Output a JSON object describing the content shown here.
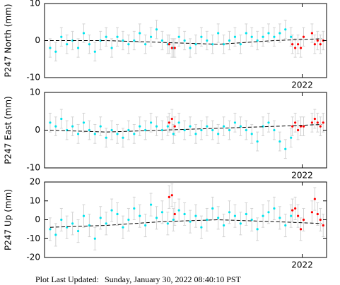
{
  "chart_data": [
    {
      "type": "scatter",
      "y_label": "P247 North (mm)",
      "xlim": [
        2021.08,
        2022.087
      ],
      "xticks": [
        {
          "value": 2022,
          "label": "2022"
        }
      ],
      "ylim": [
        -10,
        10
      ],
      "yticks": [
        -10,
        0,
        10
      ],
      "error_color": "#d3d3d3",
      "series": [
        {
          "color": "#00e5ee",
          "error": 2.5,
          "x": [
            2021.1,
            2021.12,
            2021.14,
            2021.16,
            2021.18,
            2021.2,
            2021.22,
            2021.24,
            2021.26,
            2021.28,
            2021.3,
            2021.32,
            2021.34,
            2021.36,
            2021.38,
            2021.4,
            2021.42,
            2021.44,
            2021.46,
            2021.48,
            2021.5,
            2021.52,
            2021.54,
            2021.56,
            2021.58,
            2021.6,
            2021.62,
            2021.64,
            2021.66,
            2021.68,
            2021.7,
            2021.72,
            2021.74,
            2021.76,
            2021.78,
            2021.8,
            2021.82,
            2021.84,
            2021.86,
            2021.88,
            2021.9,
            2021.92,
            2021.94,
            2021.96
          ],
          "values": [
            -2,
            -3,
            1,
            -1,
            0,
            -2,
            2,
            -1,
            -3,
            0,
            1,
            -2,
            1,
            0,
            -1,
            0,
            2,
            -1,
            1,
            3,
            0,
            -1,
            -2,
            1,
            0,
            -2,
            -1,
            1,
            0,
            -1,
            2,
            -1,
            0,
            1,
            -1,
            2,
            1,
            0,
            1,
            2,
            1,
            2,
            3,
            1
          ]
        },
        {
          "color": "#ff0000",
          "error": 2.5,
          "x": [
            2021.525,
            2021.535,
            2021.545,
            2021.965,
            2021.975,
            2021.985,
            2021.995,
            2022.005,
            2022.035,
            2022.045,
            2022.055,
            2022.065,
            2022.075
          ],
          "values": [
            -1,
            -2,
            -2,
            -1,
            -2,
            -1,
            -2,
            1,
            2,
            -1,
            0,
            -1,
            0
          ]
        },
        {
          "type": "line",
          "color": "#000000",
          "x": [
            2021.1,
            2021.3,
            2021.5,
            2021.7,
            2021.9,
            2022.07
          ],
          "values": [
            0,
            0,
            -0.5,
            -1,
            0,
            0.5
          ]
        }
      ]
    },
    {
      "type": "scatter",
      "y_label": "P247 East (mm)",
      "xlim": [
        2021.08,
        2022.087
      ],
      "xticks": [
        {
          "value": 2022,
          "label": "2022"
        }
      ],
      "ylim": [
        -10,
        10
      ],
      "yticks": [
        -10,
        0,
        10
      ],
      "error_color": "#d3d3d3",
      "series": [
        {
          "color": "#00e5ee",
          "error": 2.5,
          "x": [
            2021.1,
            2021.12,
            2021.14,
            2021.16,
            2021.18,
            2021.2,
            2021.22,
            2021.24,
            2021.26,
            2021.28,
            2021.3,
            2021.32,
            2021.34,
            2021.36,
            2021.38,
            2021.4,
            2021.42,
            2021.44,
            2021.46,
            2021.48,
            2021.5,
            2021.52,
            2021.54,
            2021.56,
            2021.58,
            2021.6,
            2021.62,
            2021.64,
            2021.66,
            2021.68,
            2021.7,
            2021.72,
            2021.74,
            2021.76,
            2021.78,
            2021.8,
            2021.82,
            2021.84,
            2021.86,
            2021.88,
            2021.9,
            2021.92,
            2021.94,
            2021.96
          ],
          "values": [
            2,
            1,
            3,
            0,
            1,
            -1,
            2,
            0,
            -1,
            1,
            -2,
            0,
            -1,
            -2,
            0,
            -1,
            1,
            0,
            2,
            1,
            0,
            1,
            -1,
            2,
            0,
            1,
            -1,
            0,
            1,
            0,
            -1,
            1,
            0,
            2,
            1,
            0,
            -1,
            -3,
            1,
            2,
            0,
            -3,
            -5,
            -2
          ]
        },
        {
          "color": "#ff0000",
          "error": 2.5,
          "x": [
            2021.525,
            2021.535,
            2021.545,
            2021.965,
            2021.975,
            2021.985,
            2021.995,
            2022.005,
            2022.035,
            2022.045,
            2022.055,
            2022.065,
            2022.075
          ],
          "values": [
            2,
            3,
            1,
            1,
            2,
            0,
            1,
            1,
            2,
            3,
            2,
            1,
            2
          ]
        },
        {
          "type": "line",
          "color": "#000000",
          "x": [
            2021.1,
            2021.3,
            2021.5,
            2021.7,
            2021.9,
            2022.07
          ],
          "values": [
            0,
            -0.5,
            0,
            0.5,
            1,
            1.5
          ]
        }
      ]
    },
    {
      "type": "scatter",
      "y_label": "P247 Up (mm)",
      "xlim": [
        2021.08,
        2022.087
      ],
      "xticks": [
        {
          "value": 2022,
          "label": "2022"
        }
      ],
      "ylim": [
        -20,
        20
      ],
      "yticks": [
        -20,
        -10,
        0,
        10,
        20
      ],
      "error_color": "#d3d3d3",
      "series": [
        {
          "color": "#00e5ee",
          "error": 6,
          "x": [
            2021.1,
            2021.12,
            2021.14,
            2021.16,
            2021.18,
            2021.2,
            2021.22,
            2021.24,
            2021.26,
            2021.28,
            2021.3,
            2021.32,
            2021.34,
            2021.36,
            2021.38,
            2021.4,
            2021.42,
            2021.44,
            2021.46,
            2021.48,
            2021.5,
            2021.52,
            2021.54,
            2021.56,
            2021.58,
            2021.6,
            2021.62,
            2021.64,
            2021.66,
            2021.68,
            2021.7,
            2021.72,
            2021.74,
            2021.76,
            2021.78,
            2021.8,
            2021.82,
            2021.84,
            2021.86,
            2021.88,
            2021.9,
            2021.92,
            2021.94,
            2021.96
          ],
          "values": [
            -5,
            -8,
            0,
            -4,
            -2,
            -6,
            2,
            -3,
            -10,
            1,
            -2,
            5,
            3,
            -4,
            0,
            6,
            2,
            -3,
            8,
            1,
            4,
            -2,
            0,
            5,
            3,
            -1,
            2,
            -4,
            0,
            6,
            1,
            -3,
            4,
            2,
            -2,
            3,
            0,
            -5,
            2,
            4,
            6,
            1,
            -3,
            2
          ]
        },
        {
          "color": "#ff0000",
          "error": 6,
          "x": [
            2021.525,
            2021.535,
            2021.545,
            2021.965,
            2021.975,
            2021.985,
            2021.995,
            2022.005,
            2022.035,
            2022.045,
            2022.055,
            2022.065,
            2022.075
          ],
          "values": [
            12,
            13,
            3,
            5,
            6,
            2,
            -5,
            0,
            4,
            11,
            3,
            0,
            -3
          ]
        },
        {
          "type": "line",
          "color": "#000000",
          "x": [
            2021.1,
            2021.3,
            2021.5,
            2021.7,
            2021.9,
            2022.07
          ],
          "values": [
            -4,
            -3,
            -1,
            0,
            -1,
            -2
          ]
        }
      ]
    }
  ],
  "footer": {
    "label": "Plot Last Updated:",
    "timestamp": "Sunday, January 30, 2022 08:40:10 PST"
  }
}
